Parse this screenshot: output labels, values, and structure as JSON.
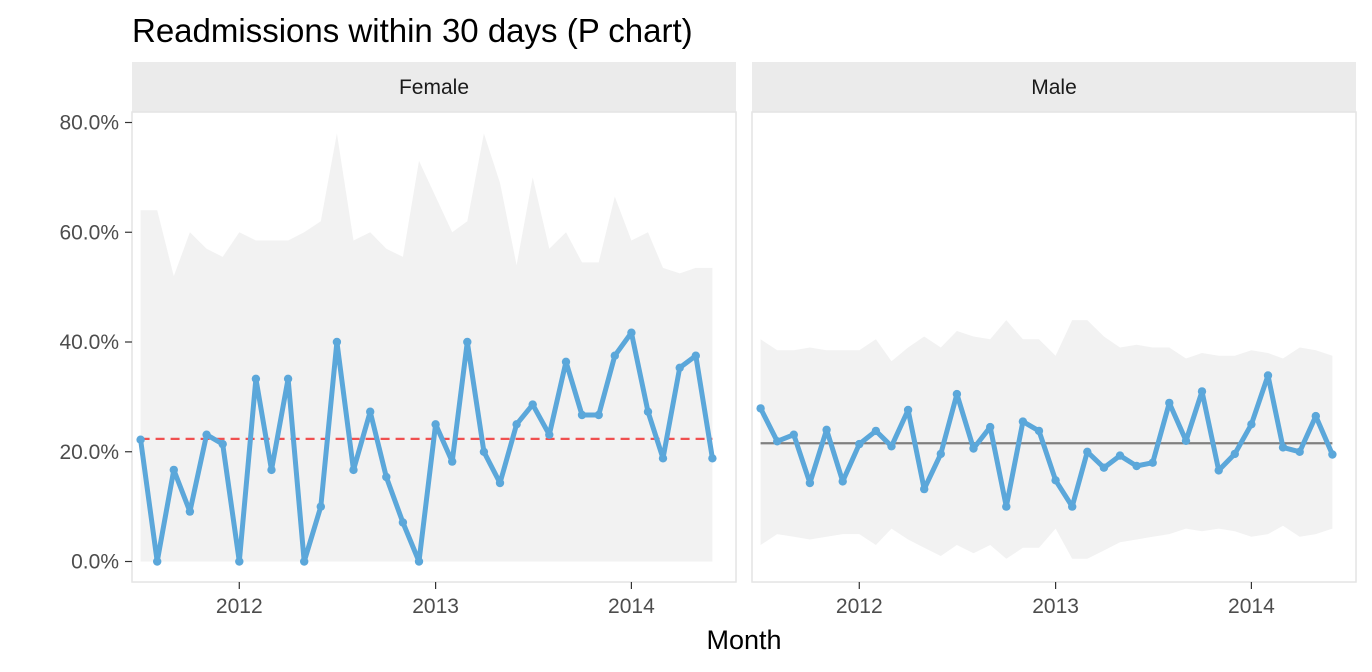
{
  "chart_data": {
    "type": "line",
    "title": "Readmissions within 30 days (P chart)",
    "xlabel": "Month",
    "ylabel": "",
    "ylim": [
      0,
      0.8
    ],
    "yticks": [
      0,
      0.2,
      0.4,
      0.6,
      0.8
    ],
    "ytick_labels": [
      "0.0%",
      "20.0%",
      "40.0%",
      "60.0%",
      "80.0%"
    ],
    "xlim": [
      "2011-06-15",
      "2014-07-15"
    ],
    "xticks": [
      "2012-01-01",
      "2013-01-01",
      "2014-01-01"
    ],
    "xtick_labels": [
      "2012",
      "2013",
      "2014"
    ],
    "x": [
      "2011-07-01",
      "2011-08-01",
      "2011-09-01",
      "2011-10-01",
      "2011-11-01",
      "2011-12-01",
      "2012-01-01",
      "2012-02-01",
      "2012-03-01",
      "2012-04-01",
      "2012-05-01",
      "2012-06-01",
      "2012-07-01",
      "2012-08-01",
      "2012-09-01",
      "2012-10-01",
      "2012-11-01",
      "2012-12-01",
      "2013-01-01",
      "2013-02-01",
      "2013-03-01",
      "2013-04-01",
      "2013-05-01",
      "2013-06-01",
      "2013-07-01",
      "2013-08-01",
      "2013-09-01",
      "2013-10-01",
      "2013-11-01",
      "2013-12-01",
      "2014-01-01",
      "2014-02-01",
      "2014-03-01",
      "2014-04-01",
      "2014-05-01",
      "2014-06-01"
    ],
    "grid": true,
    "colors": {
      "line": "#5ba7da",
      "limits_band": "#f2f2f2",
      "strip_bg": "#ebebeb",
      "panel_border": "#e4e4e4",
      "center_line_signal": "#f05050",
      "center_line_normal": "#808080"
    },
    "facets": [
      {
        "label": "Female",
        "center_line": 0.2235,
        "center_line_style": "dashed-red",
        "values": [
          0.222,
          0.0,
          0.167,
          0.091,
          0.231,
          0.214,
          0.0,
          0.333,
          0.167,
          0.333,
          0.0,
          0.1,
          0.4,
          0.167,
          0.273,
          0.154,
          0.071,
          0.0,
          0.25,
          0.182,
          0.4,
          0.2,
          0.143,
          0.25,
          0.286,
          0.231,
          0.364,
          0.267,
          0.267,
          0.375,
          0.417,
          0.273,
          0.188,
          0.353,
          0.375,
          0.188
        ],
        "lcl": [
          0,
          0,
          0,
          0,
          0,
          0,
          0,
          0,
          0,
          0,
          0,
          0,
          0,
          0,
          0,
          0,
          0,
          0,
          0,
          0,
          0,
          0,
          0,
          0,
          0,
          0,
          0,
          0,
          0,
          0,
          0,
          0,
          0,
          0,
          0,
          0
        ],
        "ucl": [
          0.64,
          0.64,
          0.52,
          0.6,
          0.57,
          0.555,
          0.6,
          0.585,
          0.585,
          0.585,
          0.6,
          0.62,
          0.78,
          0.585,
          0.6,
          0.57,
          0.555,
          0.73,
          0.665,
          0.6,
          0.62,
          0.78,
          0.69,
          0.54,
          0.7,
          0.57,
          0.6,
          0.545,
          0.545,
          0.665,
          0.585,
          0.6,
          0.535,
          0.525,
          0.535,
          0.535
        ]
      },
      {
        "label": "Male",
        "center_line": 0.2155,
        "center_line_style": "solid-gray",
        "values": [
          0.279,
          0.219,
          0.231,
          0.143,
          0.24,
          0.146,
          0.214,
          0.238,
          0.21,
          0.276,
          0.132,
          0.196,
          0.305,
          0.206,
          0.245,
          0.1,
          0.255,
          0.238,
          0.148,
          0.1,
          0.2,
          0.171,
          0.193,
          0.174,
          0.18,
          0.289,
          0.22,
          0.31,
          0.166,
          0.196,
          0.25,
          0.339,
          0.208,
          0.2,
          0.265,
          0.195
        ],
        "lcl": [
          0.03,
          0.05,
          0.045,
          0.04,
          0.045,
          0.05,
          0.05,
          0.03,
          0.06,
          0.04,
          0.025,
          0.01,
          0.03,
          0.015,
          0.03,
          0.005,
          0.025,
          0.025,
          0.06,
          0.005,
          0.005,
          0.02,
          0.035,
          0.04,
          0.045,
          0.05,
          0.06,
          0.055,
          0.06,
          0.055,
          0.045,
          0.05,
          0.065,
          0.045,
          0.05,
          0.06
        ],
        "ucl": [
          0.405,
          0.385,
          0.385,
          0.39,
          0.385,
          0.385,
          0.385,
          0.405,
          0.365,
          0.39,
          0.41,
          0.39,
          0.42,
          0.41,
          0.405,
          0.44,
          0.405,
          0.405,
          0.375,
          0.44,
          0.44,
          0.41,
          0.39,
          0.395,
          0.39,
          0.39,
          0.37,
          0.38,
          0.375,
          0.375,
          0.385,
          0.38,
          0.37,
          0.39,
          0.385,
          0.375
        ]
      }
    ]
  }
}
